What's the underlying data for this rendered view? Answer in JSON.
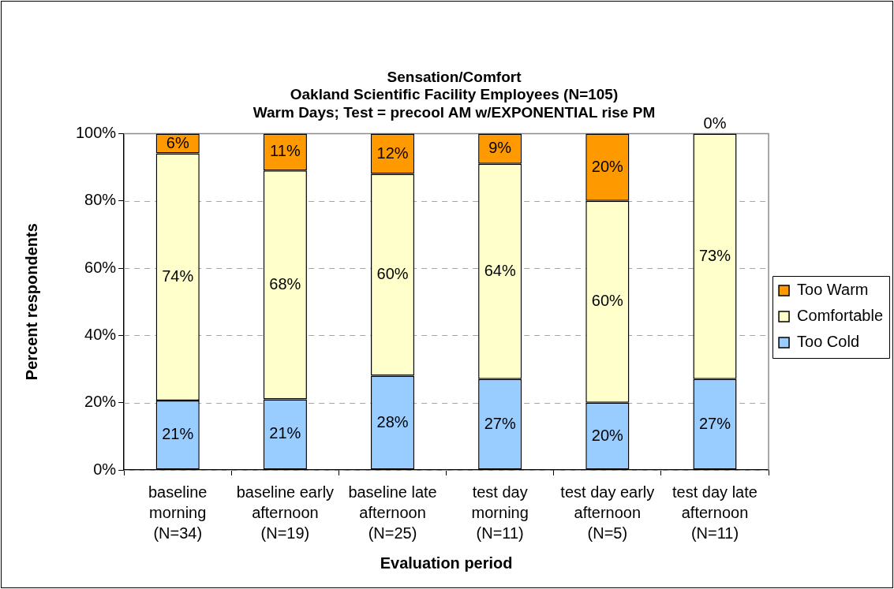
{
  "chart_data": {
    "type": "bar",
    "title": "Sensation/Comfort",
    "subtitle": "Oakland Scientific Facility Employees (N=105)\nWarm Days; Test = precool AM w/EXPONENTIAL rise PM",
    "xlabel": "Evaluation period",
    "ylabel": "Percent respondents",
    "categories": [
      "baseline morning (N=34)",
      "baseline early afternoon (N=19)",
      "baseline late afternoon (N=25)",
      "test day morning (N=11)",
      "test day early afternoon (N=5)",
      "test day late afternoon (N=11)"
    ],
    "stacked": true,
    "series": [
      {
        "name": "Too Cold",
        "color": "#99ccff",
        "values": [
          20.6,
          21,
          28,
          27,
          20,
          27
        ],
        "value_labels": [
          "21%",
          "21%",
          "28%",
          "27%",
          "20%",
          "27%"
        ]
      },
      {
        "name": "Comfortable",
        "color": "#ffffcc",
        "values": [
          73.5,
          68,
          60,
          64,
          60,
          73
        ],
        "value_labels": [
          "74%",
          "68%",
          "60%",
          "64%",
          "60%",
          "73%"
        ]
      },
      {
        "name": "Too Warm",
        "color": "#ff9900",
        "values": [
          5.9,
          11,
          12,
          9,
          20,
          0
        ],
        "value_labels": [
          "6%",
          "11%",
          "12%",
          "9%",
          "20%",
          "0%"
        ]
      }
    ],
    "ylim": [
      0,
      100
    ],
    "yticks": [
      {
        "value": 0,
        "label": "0%"
      },
      {
        "value": 20,
        "label": "20%"
      },
      {
        "value": 40,
        "label": "40%"
      },
      {
        "value": 60,
        "label": "60%"
      },
      {
        "value": 80,
        "label": "80%"
      },
      {
        "value": 100,
        "label": "100%"
      }
    ],
    "grid": "y",
    "legend": "right"
  }
}
